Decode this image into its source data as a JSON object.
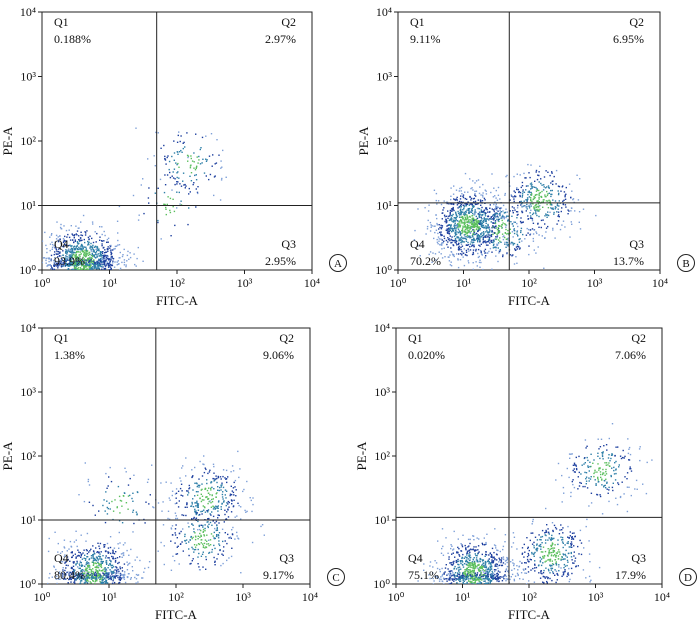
{
  "chart_data": [
    {
      "type": "scatter",
      "panel_label": "A",
      "xlabel": "FITC-A",
      "ylabel": "PE-A",
      "xscale": "log",
      "yscale": "log",
      "xlim": [
        1,
        10000
      ],
      "ylim": [
        1,
        10000
      ],
      "x_ticks": [
        "10⁰",
        "10¹",
        "10²",
        "10³",
        "10⁴"
      ],
      "y_ticks": [
        "10⁰",
        "10¹",
        "10²",
        "10³",
        "10⁴"
      ],
      "gates": {
        "x": 50,
        "y": 10
      },
      "quadrants": [
        {
          "name": "Q1",
          "value": "0.188%"
        },
        {
          "name": "Q2",
          "value": "2.97%"
        },
        {
          "name": "Q3",
          "value": "2.95%"
        },
        {
          "name": "Q4",
          "value": "93.9%"
        }
      ],
      "clusters": [
        {
          "x": 4,
          "y": 1.4,
          "n": 900
        },
        {
          "x": 150,
          "y": 45,
          "n": 130
        },
        {
          "x": 80,
          "y": 10,
          "n": 50
        }
      ]
    },
    {
      "type": "scatter",
      "panel_label": "B",
      "xlabel": "FITC-A",
      "ylabel": "PE-A",
      "xscale": "log",
      "yscale": "log",
      "xlim": [
        1,
        10000
      ],
      "ylim": [
        1,
        10000
      ],
      "x_ticks": [
        "10⁰",
        "10¹",
        "10²",
        "10³",
        "10⁴"
      ],
      "y_ticks": [
        "10⁰",
        "10¹",
        "10²",
        "10³",
        "10⁴"
      ],
      "gates": {
        "x": 50,
        "y": 11
      },
      "quadrants": [
        {
          "name": "Q1",
          "value": "9.11%"
        },
        {
          "name": "Q2",
          "value": "6.95%"
        },
        {
          "name": "Q3",
          "value": "13.7%"
        },
        {
          "name": "Q4",
          "value": "70.2%"
        }
      ],
      "clusters": [
        {
          "x": 12,
          "y": 5,
          "n": 1000
        },
        {
          "x": 150,
          "y": 12,
          "n": 350
        },
        {
          "x": 40,
          "y": 4,
          "n": 250
        }
      ]
    },
    {
      "type": "scatter",
      "panel_label": "C",
      "xlabel": "FITC-A",
      "ylabel": "PE-A",
      "xscale": "log",
      "yscale": "log",
      "xlim": [
        1,
        10000
      ],
      "ylim": [
        1,
        10000
      ],
      "x_ticks": [
        "10⁰",
        "10¹",
        "10²",
        "10³",
        "10⁴"
      ],
      "y_ticks": [
        "10⁰",
        "10¹",
        "10²",
        "10³",
        "10⁴"
      ],
      "gates": {
        "x": 50,
        "y": 10
      },
      "quadrants": [
        {
          "name": "Q1",
          "value": "1.38%"
        },
        {
          "name": "Q2",
          "value": "9.06%"
        },
        {
          "name": "Q3",
          "value": "9.17%"
        },
        {
          "name": "Q4",
          "value": "80.4%"
        }
      ],
      "clusters": [
        {
          "x": 6,
          "y": 1.5,
          "n": 700
        },
        {
          "x": 300,
          "y": 22,
          "n": 300
        },
        {
          "x": 250,
          "y": 5,
          "n": 220
        },
        {
          "x": 15,
          "y": 18,
          "n": 80
        }
      ]
    },
    {
      "type": "scatter",
      "panel_label": "D",
      "xlabel": "FITC-A",
      "ylabel": "PE-A",
      "xscale": "log",
      "yscale": "log",
      "xlim": [
        1,
        10000
      ],
      "ylim": [
        1,
        10000
      ],
      "x_ticks": [
        "10⁰",
        "10¹",
        "10²",
        "10³",
        "10⁴"
      ],
      "y_ticks": [
        "10⁰",
        "10¹",
        "10²",
        "10³",
        "10⁴"
      ],
      "gates": {
        "x": 50,
        "y": 11
      },
      "quadrants": [
        {
          "name": "Q1",
          "value": "0.020%"
        },
        {
          "name": "Q2",
          "value": "7.06%"
        },
        {
          "name": "Q3",
          "value": "17.9%"
        },
        {
          "name": "Q4",
          "value": "75.1%"
        }
      ],
      "clusters": [
        {
          "x": 15,
          "y": 1.5,
          "n": 800
        },
        {
          "x": 220,
          "y": 3,
          "n": 350
        },
        {
          "x": 1200,
          "y": 60,
          "n": 220
        }
      ]
    }
  ]
}
